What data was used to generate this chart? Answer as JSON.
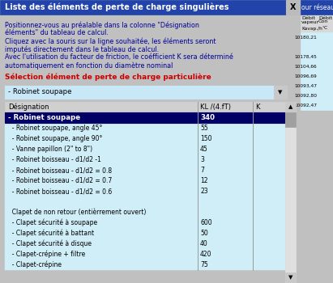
{
  "title": "Liste des éléments de perte de charge singulières",
  "title_bg": "#2244aa",
  "title_fg": "#ffffff",
  "dialog_bg": "#c0c0c0",
  "info_lines": [
    "Positionnez-vous au préalable dans la colonne \"Désignation",
    "éléments\" du tableau de calcul.",
    "Cliquez avec la souris sur la ligne souhaitée, les éléments seront",
    "imputés directement dans le tableau de calcul.",
    "Avec l'utilisation du facteur de friction, le coéfficient K sera déterminé",
    "automatiquement en fonction du diamètre nominal"
  ],
  "info_color": "#000099",
  "selection_label": "Sélection élément de perte de charge particulière",
  "selection_color": "#cc0000",
  "dropdown_text": "- Robinet soupape",
  "dropdown_bg": "#c8e8f8",
  "table_header": [
    "Désignation",
    "KL /(4.fT)",
    "K"
  ],
  "table_header_bg": "#d0d0d0",
  "selected_row": [
    "- Robinet soupape",
    "340",
    ""
  ],
  "selected_bg": "#000066",
  "selected_fg": "#ffffff",
  "rows": [
    [
      "  - Robinet soupape, angle 45°",
      "55",
      ""
    ],
    [
      "  - Robinet soupape, angle 90°",
      "150",
      ""
    ],
    [
      "  - Vanne papillon (2\" to 8\")",
      "45",
      ""
    ],
    [
      "  - Robinet boisseau - d1/d2 -1",
      "3",
      ""
    ],
    [
      "  - Robinet boisseau - d1/d2 = 0.8",
      "7",
      ""
    ],
    [
      "  - Robinet boisseau - d1/d2 = 0.7",
      "12",
      ""
    ],
    [
      "  - Robinet boisseau - d1/d2 = 0.6",
      "23",
      ""
    ],
    [
      "",
      "",
      ""
    ],
    [
      "  Clapet de non retour (entièrrement ouvert)",
      "",
      ""
    ],
    [
      "  - Clapet sécurité à soupape",
      "600",
      ""
    ],
    [
      "  - Clapet sécurité à battant",
      "50",
      ""
    ],
    [
      "  - Clapet sécurité à disque",
      "40",
      ""
    ],
    [
      "  - Clapet-crépine + filtre",
      "420",
      ""
    ],
    [
      "  - Clapet-crépine",
      "75",
      ""
    ]
  ],
  "row_bg": "#d0eef8",
  "side_title_visible": "our réseau de",
  "side_title_bg": "#2244aa",
  "side_title_fg": "#ffffff",
  "side_col1_hdr1": "Débit",
  "side_col2_hdr1": "Débit",
  "side_col1_hdr2": "vapeur",
  "side_col2_hdr2": "Con",
  "side_col1_sub": "Kavap./h",
  "side_col2_sub": "°C",
  "side_values_left": [
    "10180,21",
    "",
    "10178,45",
    "10104,66",
    "10096,69",
    "10093,47",
    "10092,80",
    "10092,47"
  ],
  "side_values_right": [
    "",
    "",
    "",
    "",
    "",
    "",
    "",
    ""
  ],
  "scrollbar_bg": "#e0e0e0",
  "scrollbar_thumb": "#a0a0a0"
}
